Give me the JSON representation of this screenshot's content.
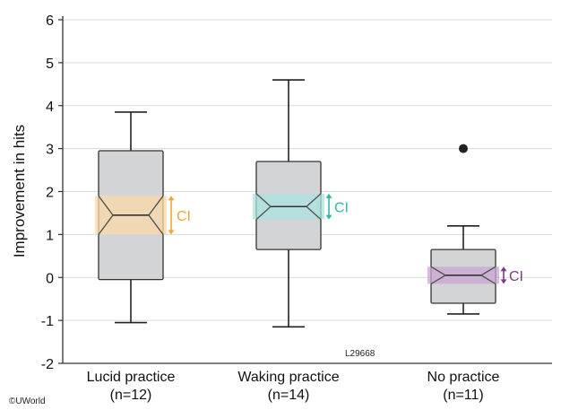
{
  "chart_data": {
    "type": "box",
    "title": "",
    "xlabel": "",
    "ylabel": "Improvement in hits",
    "ylim": [
      -2,
      6
    ],
    "yticks": [
      "-2",
      "-1",
      "0",
      "1",
      "2",
      "3",
      "4",
      "5",
      "6"
    ],
    "grid": true,
    "categories": [
      {
        "name": "Lucid practice",
        "n_label": "(n=12)"
      },
      {
        "name": "Waking practice",
        "n_label": "(n=14)"
      },
      {
        "name": "No practice",
        "n_label": "(n=11)"
      }
    ],
    "boxes": [
      {
        "whisker_low": -1.05,
        "q1": -0.05,
        "median": 1.45,
        "q3": 2.95,
        "whisker_high": 3.85,
        "ci_low": 1.0,
        "ci_high": 1.9,
        "ci_label": "CI",
        "ci_color": "#f2a43a",
        "ci_fill": "#fbd9a8",
        "outliers": []
      },
      {
        "whisker_low": -1.15,
        "q1": 0.65,
        "median": 1.65,
        "q3": 2.7,
        "whisker_high": 4.6,
        "ci_low": 1.35,
        "ci_high": 1.95,
        "ci_label": "CI",
        "ci_color": "#35b5a8",
        "ci_fill": "#a9e3de",
        "outliers": []
      },
      {
        "whisker_low": -0.85,
        "q1": -0.6,
        "median": 0.05,
        "q3": 0.65,
        "whisker_high": 1.2,
        "ci_low": -0.15,
        "ci_high": 0.25,
        "ci_label": "CI",
        "ci_color": "#7a3a8c",
        "ci_fill": "#c9a6d3",
        "outliers": [
          3.0
        ]
      }
    ],
    "box_color": "#d3d4d6",
    "annotations": [
      "L29668"
    ]
  },
  "footer": {
    "copyright": "©UWorld"
  }
}
